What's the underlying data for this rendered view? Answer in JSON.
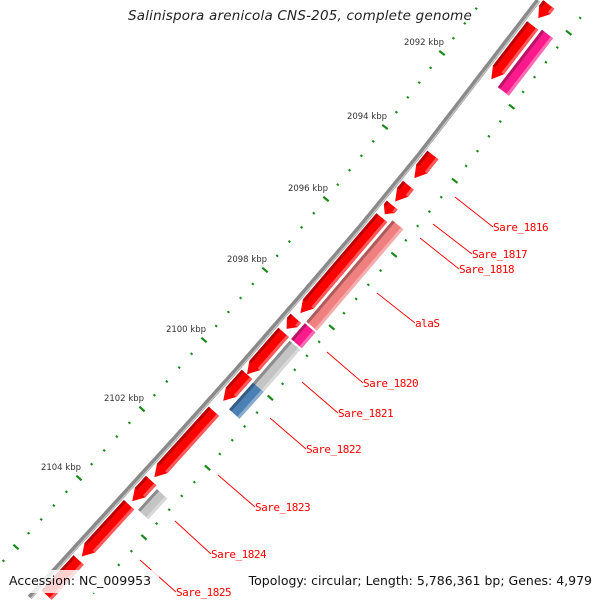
{
  "title": "Salinispora arenicola CNS-205, complete genome",
  "footer": {
    "accession": "Accession: NC_009953",
    "summary": "Topology: circular; Length: 5,786,361 bp; Genes: 4,979"
  },
  "tick_labels": [
    {
      "kbp": 2092,
      "label": "2092 kbp"
    },
    {
      "kbp": 2094,
      "label": "2094 kbp"
    },
    {
      "kbp": 2096,
      "label": "2096 kbp"
    },
    {
      "kbp": 2098,
      "label": "2098 kbp"
    },
    {
      "kbp": 2100,
      "label": "2100 kbp"
    },
    {
      "kbp": 2102,
      "label": "2102 kbp"
    },
    {
      "kbp": 2104,
      "label": "2104 kbp"
    }
  ],
  "colors": {
    "backbone": "#8a8a8a",
    "ticks": "#1a8a1a",
    "label": "#ff0000"
  },
  "features": [
    {
      "strand": "+",
      "start": 2089.0,
      "end": 2090.15,
      "color": "#ff0000"
    },
    {
      "strand": "+",
      "start": 2090.35,
      "end": 2091.8,
      "color": "#ff0000"
    },
    {
      "strand": "-",
      "start": 2090.3,
      "end": 2091.85,
      "color": "#ff1a8c"
    },
    {
      "strand": "+",
      "start": 2093.85,
      "end": 2094.45,
      "color": "#ff0000",
      "name": "Sare_1816"
    },
    {
      "strand": "+",
      "start": 2094.65,
      "end": 2095.1,
      "color": "#ff0000",
      "name": "Sare_1817"
    },
    {
      "strand": "+",
      "start": 2095.2,
      "end": 2095.45,
      "color": "#ff0000",
      "name": "Sare_1818"
    },
    {
      "strand": "+",
      "start": 2095.55,
      "end": 2098.2,
      "color": "#ff0000"
    },
    {
      "strand": "-",
      "start": 2095.45,
      "end": 2098.25,
      "color": "#f08080",
      "name": "alaS"
    },
    {
      "strand": "+",
      "start": 2098.35,
      "end": 2098.65,
      "color": "#ff0000"
    },
    {
      "strand": "-",
      "start": 2098.3,
      "end": 2098.75,
      "color": "#ff1a8c",
      "name": "Sare_1820"
    },
    {
      "strand": "+",
      "start": 2098.75,
      "end": 2099.95,
      "color": "#ff0000"
    },
    {
      "strand": "-",
      "start": 2098.8,
      "end": 2100.0,
      "color": "#c4c4c4",
      "name": "Sare_1821"
    },
    {
      "strand": "+",
      "start": 2099.95,
      "end": 2100.7,
      "color": "#ff0000"
    },
    {
      "strand": "-",
      "start": 2100.0,
      "end": 2100.75,
      "color": "#4a80b4",
      "name": "Sare_1822"
    },
    {
      "strand": "+",
      "start": 2101.0,
      "end": 2102.9,
      "color": "#ff0000",
      "name": "Sare_1823"
    },
    {
      "strand": "+",
      "start": 2103.0,
      "end": 2103.6,
      "color": "#ff0000"
    },
    {
      "strand": "-",
      "start": 2103.05,
      "end": 2103.65,
      "color": "#c4c4c4",
      "name": "Sare_1824"
    },
    {
      "strand": "+",
      "start": 2103.7,
      "end": 2105.2,
      "color": "#ff0000",
      "name": "Sare_1825"
    },
    {
      "strand": "+",
      "start": 2105.3,
      "end": 2107.5,
      "color": "#ff0000"
    }
  ]
}
